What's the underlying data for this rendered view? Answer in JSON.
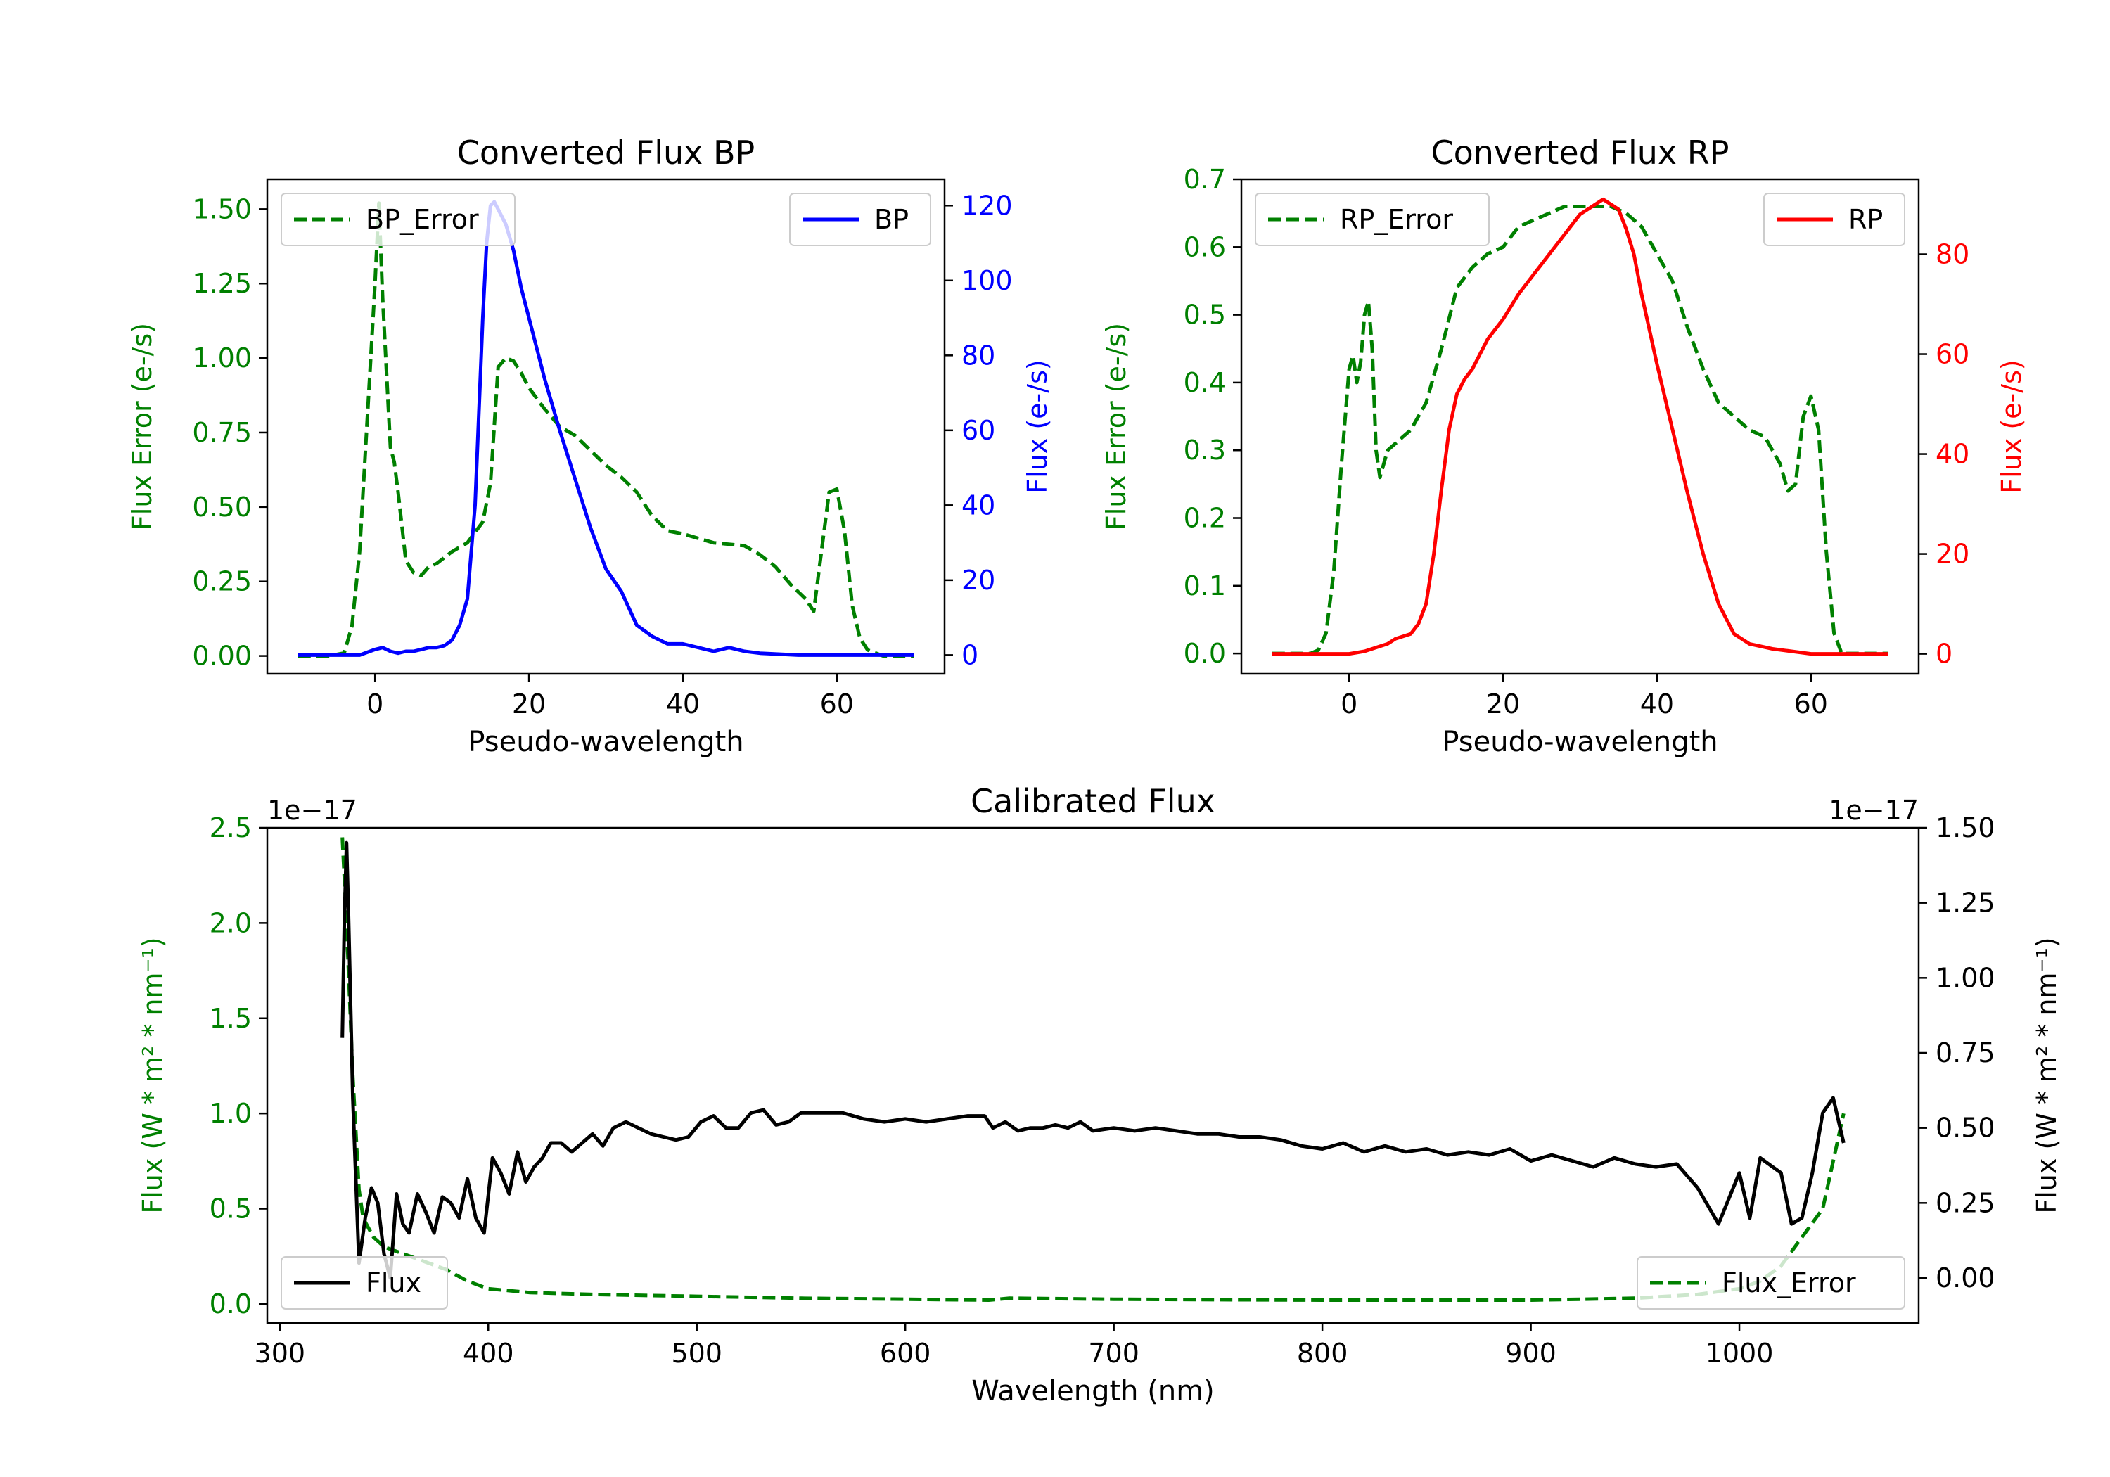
{
  "colors": {
    "bp": "#0000ff",
    "rp": "#ff0000",
    "error": "#008000",
    "flux": "#000000",
    "axis": "#000000"
  },
  "chart_data": [
    {
      "id": "bp",
      "type": "line",
      "title": "Converted Flux BP",
      "xlabel": "Pseudo-wavelength",
      "ylabel_left": "Flux Error (e-/s)",
      "ylabel_right": "Flux (e-/s)",
      "xlim": [
        -14,
        74
      ],
      "ylim_left": [
        -0.06,
        1.6
      ],
      "ylim_right": [
        -5,
        127
      ],
      "xticks": [
        0,
        20,
        40,
        60
      ],
      "yticks_left": [
        "0.00",
        "0.25",
        "0.50",
        "0.75",
        "1.00",
        "1.25",
        "1.50"
      ],
      "yticks_right": [
        "0",
        "20",
        "40",
        "60",
        "80",
        "100",
        "120"
      ],
      "legend_left": {
        "label": "BP_Error",
        "position": "upper-left"
      },
      "legend_right": {
        "label": "BP",
        "position": "upper-right"
      },
      "series": [
        {
          "name": "BP_Error",
          "axis": "left",
          "style": "dashed",
          "color": "#008000",
          "x": [
            -10,
            -6,
            -4,
            -3,
            -2,
            -1,
            0,
            0.5,
            1,
            2,
            2.5,
            3,
            4,
            5,
            6,
            7,
            8,
            9,
            10,
            12,
            14,
            15,
            16,
            17,
            18,
            19,
            20,
            22,
            24,
            26,
            28,
            30,
            32,
            34,
            36,
            38,
            40,
            44,
            48,
            50,
            52,
            54,
            56,
            57,
            58,
            59,
            60,
            61,
            62,
            63,
            64,
            66,
            70
          ],
          "y": [
            0,
            0,
            0.01,
            0.1,
            0.35,
            0.8,
            1.25,
            1.52,
            1.2,
            0.7,
            0.65,
            0.55,
            0.32,
            0.28,
            0.27,
            0.3,
            0.31,
            0.33,
            0.35,
            0.38,
            0.45,
            0.58,
            0.97,
            1.0,
            0.99,
            0.95,
            0.9,
            0.83,
            0.77,
            0.74,
            0.69,
            0.64,
            0.6,
            0.55,
            0.47,
            0.42,
            0.41,
            0.38,
            0.37,
            0.34,
            0.3,
            0.24,
            0.19,
            0.15,
            0.35,
            0.55,
            0.56,
            0.42,
            0.17,
            0.06,
            0.02,
            0,
            0
          ]
        },
        {
          "name": "BP",
          "axis": "right",
          "style": "solid",
          "color": "#0000ff",
          "x": [
            -10,
            -2,
            0,
            1,
            2,
            3,
            4,
            5,
            6,
            7,
            8,
            9,
            10,
            11,
            12,
            13,
            14,
            14.5,
            15,
            15.5,
            16,
            17,
            18,
            19,
            20,
            22,
            24,
            26,
            28,
            30,
            32,
            34,
            36,
            38,
            40,
            42,
            44,
            46,
            48,
            50,
            55,
            60,
            65,
            70
          ],
          "y": [
            0,
            0,
            1.5,
            2,
            1,
            0.5,
            1,
            1,
            1.5,
            2,
            2,
            2.5,
            4,
            8,
            15,
            40,
            90,
            110,
            120,
            121,
            119,
            115,
            108,
            98,
            90,
            74,
            60,
            47,
            34,
            23,
            17,
            8,
            5,
            3,
            3,
            2,
            1,
            2,
            1,
            0.5,
            0,
            0,
            0,
            0
          ]
        }
      ]
    },
    {
      "id": "rp",
      "type": "line",
      "title": "Converted Flux RP",
      "xlabel": "Pseudo-wavelength",
      "ylabel_left": "Flux Error (e-/s)",
      "ylabel_right": "Flux (e-/s)",
      "xlim": [
        -14,
        74
      ],
      "ylim_left": [
        -0.03,
        0.7
      ],
      "ylim_right": [
        -4,
        95
      ],
      "xticks": [
        0,
        20,
        40,
        60
      ],
      "yticks_left": [
        "0.0",
        "0.1",
        "0.2",
        "0.3",
        "0.4",
        "0.5",
        "0.6",
        "0.7"
      ],
      "yticks_right": [
        "0",
        "20",
        "40",
        "60",
        "80"
      ],
      "legend_left": {
        "label": "RP_Error",
        "position": "upper-left"
      },
      "legend_right": {
        "label": "RP",
        "position": "upper-right"
      },
      "series": [
        {
          "name": "RP_Error",
          "axis": "left",
          "style": "dashed",
          "color": "#008000",
          "x": [
            -10,
            -5,
            -4,
            -3,
            -2,
            -1,
            0,
            0.5,
            1,
            1.5,
            2,
            2.5,
            3,
            3.5,
            4,
            5,
            6,
            7,
            8,
            10,
            12,
            14,
            16,
            18,
            20,
            22,
            24,
            26,
            28,
            30,
            32,
            34,
            36,
            38,
            40,
            42,
            44,
            46,
            48,
            50,
            52,
            54,
            55,
            56,
            57,
            58,
            59,
            60,
            61,
            62,
            63,
            64,
            66,
            70
          ],
          "y": [
            0,
            0,
            0.005,
            0.03,
            0.12,
            0.28,
            0.42,
            0.44,
            0.4,
            0.43,
            0.5,
            0.52,
            0.45,
            0.3,
            0.26,
            0.3,
            0.31,
            0.32,
            0.33,
            0.37,
            0.45,
            0.54,
            0.57,
            0.59,
            0.6,
            0.63,
            0.64,
            0.65,
            0.66,
            0.66,
            0.66,
            0.66,
            0.65,
            0.63,
            0.59,
            0.55,
            0.48,
            0.42,
            0.37,
            0.35,
            0.33,
            0.32,
            0.3,
            0.28,
            0.24,
            0.25,
            0.35,
            0.38,
            0.33,
            0.15,
            0.03,
            0,
            0,
            0
          ]
        },
        {
          "name": "RP",
          "axis": "right",
          "style": "solid",
          "color": "#ff0000",
          "x": [
            -10,
            0,
            2,
            4,
            5,
            6,
            8,
            9,
            10,
            11,
            12,
            13,
            14,
            15,
            16,
            18,
            20,
            22,
            24,
            26,
            28,
            30,
            32,
            33,
            34,
            35,
            36,
            37,
            38,
            40,
            42,
            44,
            46,
            48,
            50,
            52,
            55,
            60,
            65,
            70
          ],
          "y": [
            0,
            0,
            0.5,
            1.5,
            2,
            3,
            4,
            6,
            10,
            20,
            33,
            45,
            52,
            55,
            57,
            63,
            67,
            72,
            76,
            80,
            84,
            88,
            90,
            91,
            90,
            89,
            85,
            80,
            72,
            58,
            45,
            32,
            20,
            10,
            4,
            2,
            1,
            0,
            0,
            0
          ]
        }
      ]
    },
    {
      "id": "calibrated",
      "type": "line",
      "title": "Calibrated Flux",
      "xlabel": "Wavelength (nm)",
      "ylabel_left": "Flux (W * m² * nm⁻¹)",
      "ylabel_right": "Flux (W * m² * nm⁻¹)",
      "offset_left": "1e−17",
      "offset_right": "1e−17",
      "xlim": [
        294,
        1086
      ],
      "ylim_left": [
        -0.1,
        2.5
      ],
      "ylim_right": [
        -0.15,
        1.5
      ],
      "xticks": [
        300,
        400,
        500,
        600,
        700,
        800,
        900,
        1000
      ],
      "yticks_left": [
        "0.0",
        "0.5",
        "1.0",
        "1.5",
        "2.0",
        "2.5"
      ],
      "yticks_right": [
        "0.00",
        "0.25",
        "0.50",
        "0.75",
        "1.00",
        "1.25",
        "1.50"
      ],
      "legend_left": {
        "label": "Flux",
        "position": "lower-left"
      },
      "legend_right": {
        "label": "Flux_Error",
        "position": "lower-right"
      },
      "series": [
        {
          "name": "Flux_Error",
          "axis": "left",
          "style": "dashed",
          "color": "#008000",
          "x": [
            330,
            332,
            335,
            338,
            340,
            345,
            350,
            355,
            360,
            370,
            380,
            390,
            400,
            420,
            450,
            500,
            550,
            600,
            640,
            650,
            700,
            800,
            900,
            950,
            980,
            1000,
            1010,
            1020,
            1030,
            1040,
            1050
          ],
          "y": [
            2.45,
            2.0,
            1.2,
            0.6,
            0.45,
            0.35,
            0.3,
            0.28,
            0.26,
            0.22,
            0.18,
            0.12,
            0.08,
            0.06,
            0.05,
            0.04,
            0.03,
            0.025,
            0.02,
            0.03,
            0.025,
            0.02,
            0.02,
            0.03,
            0.05,
            0.08,
            0.12,
            0.2,
            0.35,
            0.5,
            1.0
          ]
        },
        {
          "name": "Flux",
          "axis": "right",
          "style": "solid",
          "color": "#000000",
          "x": [
            330,
            331,
            332,
            333,
            335,
            338,
            341,
            344,
            347,
            350,
            353,
            356,
            359,
            362,
            366,
            370,
            374,
            378,
            382,
            386,
            390,
            394,
            398,
            402,
            406,
            410,
            414,
            418,
            422,
            426,
            430,
            435,
            440,
            445,
            450,
            455,
            460,
            466,
            472,
            478,
            484,
            490,
            496,
            502,
            508,
            514,
            520,
            526,
            532,
            538,
            544,
            550,
            560,
            570,
            580,
            590,
            600,
            610,
            620,
            630,
            638,
            642,
            648,
            654,
            660,
            666,
            672,
            678,
            684,
            690,
            700,
            710,
            720,
            730,
            740,
            750,
            760,
            770,
            780,
            790,
            800,
            810,
            820,
            830,
            840,
            850,
            860,
            870,
            880,
            890,
            900,
            910,
            920,
            930,
            940,
            950,
            960,
            970,
            980,
            990,
            1000,
            1005,
            1010,
            1020,
            1025,
            1030,
            1035,
            1040,
            1045,
            1050
          ],
          "y": [
            0.8,
            1.2,
            1.45,
            1.2,
            0.6,
            0.05,
            0.2,
            0.3,
            0.25,
            0.08,
            0.0,
            0.28,
            0.18,
            0.15,
            0.28,
            0.22,
            0.15,
            0.27,
            0.25,
            0.2,
            0.33,
            0.2,
            0.15,
            0.4,
            0.35,
            0.28,
            0.42,
            0.32,
            0.37,
            0.4,
            0.45,
            0.45,
            0.42,
            0.45,
            0.48,
            0.44,
            0.5,
            0.52,
            0.5,
            0.48,
            0.47,
            0.46,
            0.47,
            0.52,
            0.54,
            0.5,
            0.5,
            0.55,
            0.56,
            0.51,
            0.52,
            0.55,
            0.55,
            0.55,
            0.53,
            0.52,
            0.53,
            0.52,
            0.53,
            0.54,
            0.54,
            0.5,
            0.52,
            0.49,
            0.5,
            0.5,
            0.51,
            0.5,
            0.52,
            0.49,
            0.5,
            0.49,
            0.5,
            0.49,
            0.48,
            0.48,
            0.47,
            0.47,
            0.46,
            0.44,
            0.43,
            0.45,
            0.42,
            0.44,
            0.42,
            0.43,
            0.41,
            0.42,
            0.41,
            0.43,
            0.39,
            0.41,
            0.39,
            0.37,
            0.4,
            0.38,
            0.37,
            0.38,
            0.3,
            0.18,
            0.35,
            0.2,
            0.4,
            0.35,
            0.18,
            0.2,
            0.35,
            0.55,
            0.6,
            0.45
          ]
        }
      ]
    }
  ]
}
